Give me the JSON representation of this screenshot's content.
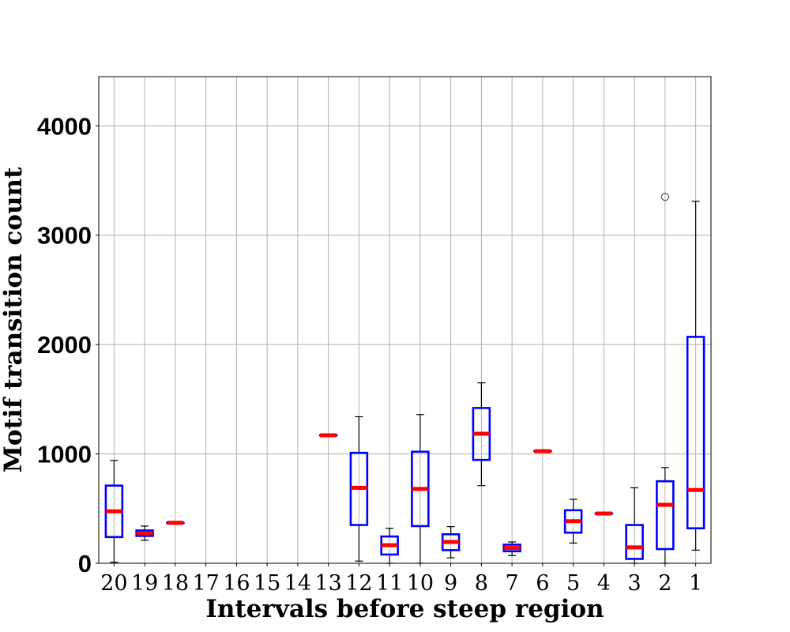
{
  "chart_data": {
    "type": "box",
    "title": "",
    "xlabel": "Intervals before steep region",
    "ylabel": "Motif transition count",
    "ylim": [
      0,
      4450
    ],
    "yticks": [
      0,
      1000,
      2000,
      3000,
      4000
    ],
    "grid": true,
    "categories": [
      "20",
      "19",
      "18",
      "17",
      "16",
      "15",
      "14",
      "13",
      "12",
      "11",
      "10",
      "9",
      "8",
      "7",
      "6",
      "5",
      "4",
      "3",
      "2",
      "1"
    ],
    "boxes": [
      {
        "label": "20",
        "whislo": 10,
        "q1": 240,
        "median": 475,
        "q3": 710,
        "whishi": 940,
        "fliers": []
      },
      {
        "label": "19",
        "whislo": 210,
        "q1": 250,
        "median": 275,
        "q3": 300,
        "whishi": 340,
        "fliers": []
      },
      {
        "label": "18",
        "whislo": 370,
        "q1": 370,
        "median": 370,
        "q3": 370,
        "whishi": 370,
        "fliers": []
      },
      {
        "label": "17",
        "empty": true
      },
      {
        "label": "16",
        "empty": true
      },
      {
        "label": "15",
        "empty": true
      },
      {
        "label": "14",
        "empty": true
      },
      {
        "label": "13",
        "whislo": 1170,
        "q1": 1170,
        "median": 1170,
        "q3": 1170,
        "whishi": 1170,
        "fliers": []
      },
      {
        "label": "12",
        "whislo": 20,
        "q1": 350,
        "median": 690,
        "q3": 1010,
        "whishi": 1340,
        "fliers": []
      },
      {
        "label": "11",
        "whislo": 0,
        "q1": 80,
        "median": 165,
        "q3": 245,
        "whishi": 320,
        "fliers": []
      },
      {
        "label": "10",
        "whislo": 0,
        "q1": 340,
        "median": 680,
        "q3": 1020,
        "whishi": 1360,
        "fliers": []
      },
      {
        "label": "9",
        "whislo": 50,
        "q1": 120,
        "median": 195,
        "q3": 265,
        "whishi": 335,
        "fliers": []
      },
      {
        "label": "8",
        "whislo": 710,
        "q1": 945,
        "median": 1185,
        "q3": 1420,
        "whishi": 1650,
        "fliers": []
      },
      {
        "label": "7",
        "whislo": 70,
        "q1": 110,
        "median": 140,
        "q3": 170,
        "whishi": 195,
        "fliers": []
      },
      {
        "label": "6",
        "whislo": 1025,
        "q1": 1025,
        "median": 1025,
        "q3": 1025,
        "whishi": 1025,
        "fliers": []
      },
      {
        "label": "5",
        "whislo": 185,
        "q1": 280,
        "median": 385,
        "q3": 485,
        "whishi": 585,
        "fliers": []
      },
      {
        "label": "4",
        "whislo": 455,
        "q1": 455,
        "median": 455,
        "q3": 455,
        "whishi": 455,
        "fliers": []
      },
      {
        "label": "3",
        "whislo": 0,
        "q1": 40,
        "median": 145,
        "q3": 350,
        "whishi": 690,
        "fliers": []
      },
      {
        "label": "2",
        "whislo": 0,
        "q1": 130,
        "median": 535,
        "q3": 750,
        "whishi": 875,
        "fliers": [
          3350
        ]
      },
      {
        "label": "1",
        "whislo": 120,
        "q1": 320,
        "median": 670,
        "q3": 2070,
        "whishi": 3310,
        "fliers": []
      }
    ],
    "colors": {
      "box": "#0000ff",
      "median": "#ff0000",
      "whisker": "#000000",
      "grid": "#b0b0b0",
      "flier": "#555555"
    }
  }
}
